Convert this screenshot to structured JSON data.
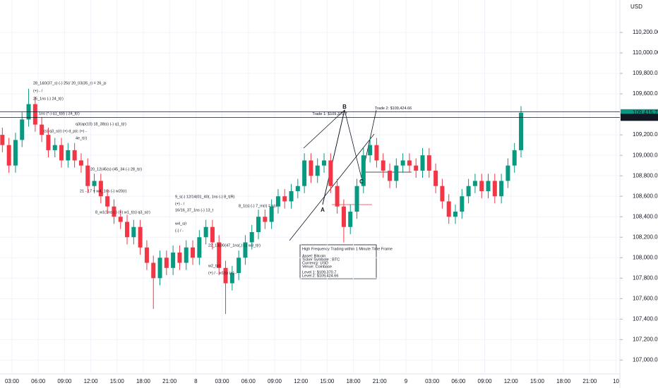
{
  "chart_data": {
    "type": "candlestick",
    "currency": "USD",
    "x": [
      1.9,
      2.65,
      3.4,
      4.15,
      4.9,
      5.65,
      6.4,
      7.15,
      7.9,
      8.65,
      9.4,
      10.15,
      10.9,
      11.65,
      12.4,
      13.15,
      13.9,
      14.65,
      15.4,
      16.15,
      16.9,
      17.65,
      18.4,
      19.15,
      19.9,
      20.65,
      21.4,
      22.15,
      22.9,
      23.65,
      24.4,
      25.15,
      25.9,
      26.65,
      27.4,
      28.15,
      28.9,
      29.65,
      30.4,
      31.15,
      31.9,
      32.65,
      33.4,
      34.15,
      34.9,
      35.65,
      36.4,
      37.15,
      37.9,
      38.65,
      39.4,
      40.15,
      40.9,
      41.65,
      42.4,
      43.15,
      43.9,
      44.65,
      45.4,
      46.15,
      46.9,
      47.65,
      48.4,
      49.15,
      49.9,
      50.65,
      51.4,
      52.15,
      52.9,
      53.65,
      54.4,
      55.15,
      55.9,
      56.65,
      57.4,
      58.15,
      58.9,
      59.65,
      60.4,
      61.15
    ],
    "open": [
      109200,
      109100,
      108900,
      109150,
      109350,
      109500,
      109300,
      109200,
      109050,
      109100,
      108950,
      109050,
      108950,
      108900,
      108700,
      108750,
      108600,
      108500,
      108400,
      108350,
      108200,
      108300,
      108100,
      107950,
      107800,
      108000,
      107900,
      108050,
      107950,
      108100,
      108000,
      108200,
      108300,
      108150,
      107900,
      107750,
      107850,
      108000,
      108150,
      108250,
      108400,
      108350,
      108500,
      108600,
      108550,
      108650,
      108700,
      108950,
      108800,
      108900,
      108950,
      108700,
      108500,
      108300,
      108450,
      108700,
      109000,
      109100,
      108950,
      108850,
      108750,
      108900,
      108950,
      108900,
      108850,
      109000,
      108850,
      108700,
      108550,
      108400,
      108450,
      108600,
      108700,
      108750,
      108650,
      108750,
      108600,
      108750,
      108900,
      109050
    ],
    "high": [
      109270,
      109170,
      109220,
      109420,
      109650,
      109570,
      109370,
      109270,
      109170,
      109170,
      109120,
      109120,
      109020,
      108970,
      108820,
      108820,
      108670,
      108570,
      108470,
      108420,
      108370,
      108370,
      108170,
      108020,
      108070,
      108070,
      108120,
      108120,
      108170,
      108170,
      108270,
      108370,
      108370,
      108220,
      107970,
      107920,
      108070,
      108220,
      108320,
      108470,
      108470,
      108570,
      108670,
      108670,
      108720,
      108770,
      109020,
      109020,
      108970,
      109020,
      109020,
      108770,
      108570,
      108520,
      108770,
      109070,
      109170,
      109170,
      109020,
      108920,
      108970,
      109020,
      109020,
      108970,
      109070,
      109070,
      108920,
      108770,
      108620,
      108520,
      108670,
      108770,
      108820,
      108820,
      108820,
      108820,
      108820,
      108970,
      109120,
      109480
    ],
    "low": [
      109030,
      108830,
      108830,
      109080,
      109280,
      109230,
      109130,
      108980,
      108980,
      108880,
      108880,
      108880,
      108830,
      108630,
      108630,
      108530,
      108430,
      108330,
      108280,
      108130,
      108130,
      108030,
      107880,
      107500,
      107730,
      107830,
      107830,
      107880,
      107880,
      107930,
      107930,
      108130,
      108080,
      107830,
      107450,
      107680,
      107780,
      107930,
      108080,
      108180,
      108280,
      108280,
      108430,
      108480,
      108480,
      108580,
      108630,
      108730,
      108730,
      108830,
      108630,
      108430,
      108150,
      108230,
      108380,
      108630,
      108930,
      108880,
      108780,
      108680,
      108680,
      108830,
      108830,
      108780,
      108780,
      108780,
      108630,
      108480,
      108330,
      108330,
      108380,
      108530,
      108630,
      108580,
      108580,
      108530,
      108530,
      108680,
      108830,
      108980
    ],
    "close": [
      109100,
      108900,
      109150,
      109350,
      109500,
      109300,
      109200,
      109050,
      109100,
      108950,
      109050,
      108950,
      108900,
      108700,
      108750,
      108600,
      108500,
      108400,
      108350,
      108200,
      108300,
      108100,
      107950,
      107800,
      108000,
      107900,
      108050,
      107950,
      108100,
      108000,
      108200,
      108300,
      108150,
      107900,
      107750,
      107850,
      108000,
      108150,
      108250,
      108400,
      108350,
      108500,
      108600,
      108550,
      108650,
      108700,
      108950,
      108800,
      108900,
      108950,
      108700,
      108500,
      108300,
      108450,
      108700,
      109000,
      109100,
      108950,
      108850,
      108750,
      108900,
      108950,
      108900,
      108850,
      109000,
      108850,
      108700,
      108550,
      108400,
      108450,
      108600,
      108700,
      108750,
      108650,
      108750,
      108600,
      108750,
      108900,
      109050,
      109415.79
    ],
    "up_color": "#089981",
    "down_color": "#f23645",
    "xlim": [
      1.63,
      72.44
    ],
    "xticks": [
      {
        "value": 3,
        "label": "03:00"
      },
      {
        "value": 6,
        "label": "06:00"
      },
      {
        "value": 9,
        "label": "09:00"
      },
      {
        "value": 12,
        "label": "12:00"
      },
      {
        "value": 15,
        "label": "15:00"
      },
      {
        "value": 18,
        "label": "18:00"
      },
      {
        "value": 21,
        "label": "21:00"
      },
      {
        "value": 24,
        "label": "8"
      },
      {
        "value": 27,
        "label": "03:00"
      },
      {
        "value": 30,
        "label": "06:00"
      },
      {
        "value": 33,
        "label": "09:00"
      },
      {
        "value": 36,
        "label": "12:00"
      },
      {
        "value": 39,
        "label": "15:00"
      },
      {
        "value": 42,
        "label": "18:00"
      },
      {
        "value": 45,
        "label": "21:00"
      },
      {
        "value": 48,
        "label": "9"
      },
      {
        "value": 51,
        "label": "03:00"
      },
      {
        "value": 54,
        "label": "06:00"
      },
      {
        "value": 57,
        "label": "09:00"
      },
      {
        "value": 60,
        "label": "12:00"
      },
      {
        "value": 63,
        "label": "15:00"
      },
      {
        "value": 66,
        "label": "18:00"
      },
      {
        "value": 69,
        "label": "21:00"
      },
      {
        "value": 72,
        "label": "10"
      }
    ],
    "ylim": [
      106865,
      110517
    ],
    "yticks": [
      {
        "value": 110200,
        "label": "110,200.00"
      },
      {
        "value": 110000,
        "label": "110,000.00"
      },
      {
        "value": 109800,
        "label": "109,800.00"
      },
      {
        "value": 109600,
        "label": "109,600.00"
      },
      {
        "value": 109400,
        "label": "109,400.00"
      },
      {
        "value": 109200,
        "label": "109,200.00"
      },
      {
        "value": 109000,
        "label": "109,000.00"
      },
      {
        "value": 108800,
        "label": "108,800.00"
      },
      {
        "value": 108600,
        "label": "108,600.00"
      },
      {
        "value": 108400,
        "label": "108,400.00"
      },
      {
        "value": 108200,
        "label": "108,200.00"
      },
      {
        "value": 108000,
        "label": "108,000.00"
      },
      {
        "value": 107800,
        "label": "107,800.00"
      },
      {
        "value": 107600,
        "label": "107,600.00"
      },
      {
        "value": 107400,
        "label": "107,400.00"
      },
      {
        "value": 107200,
        "label": "107,200.00"
      },
      {
        "value": 107000,
        "label": "107,000.00"
      }
    ],
    "levels": [
      {
        "value": 109424.66,
        "label": "Trade 2: $109,424.66"
      },
      {
        "value": 109370.7,
        "label": "Trade 1: $109,370.7"
      }
    ],
    "price_labels": [
      {
        "value": 109415.79,
        "label": "109,415.79",
        "color": "#089981"
      },
      {
        "value": 109371.1,
        "label": "109,371.10",
        "color": "#131722"
      }
    ],
    "points": [
      "A",
      "B",
      "C"
    ],
    "info_box": [
      "High Frequency Trading within 1 Minute Time Frame",
      "Asset: Bitcoin",
      "Ticker Symbole : BTC",
      "Currency: USD",
      "Venue: Coinbase",
      "Level 1: $109,370.7",
      "Level 2: $109,424.66"
    ],
    "annotations": [
      "28_1&0(37_s) (-) 25(/ 20_03(35_r) = 26_js",
      "(+) - /",
      "25_1ns (-) 24_t(r)",
      "1ns (*-) q1_t(8) | 24_t(r)",
      "q3(ap(10) 18_38(s) (-) q1_t(r)",
      "(s) q3_s(r) (+) d_p(c (+) -",
      "4e_t(r)",
      "20_12(45(s) (45_34 (-) 28_t(r)",
      "21 - 17 + w4_1ns (-) w20(r)",
      "8_w1(1ns (-) (+) w1_t(s) q3_s(r)",
      "9_s(-) 12/14(01_40(, 1ns (-) 8_t(R)",
      "(+) - /",
      "16/16_37_1ns (-) 13_t",
      "w4_s(r",
      "(-) / -",
      "22_13(30(47_1ns(,) (-) w3_t(r)",
      "w2_t(r)",
      "(+) / - w1(s) (+) -",
      "8_1(s) (-) 7_m(r) = s(c"
    ]
  }
}
